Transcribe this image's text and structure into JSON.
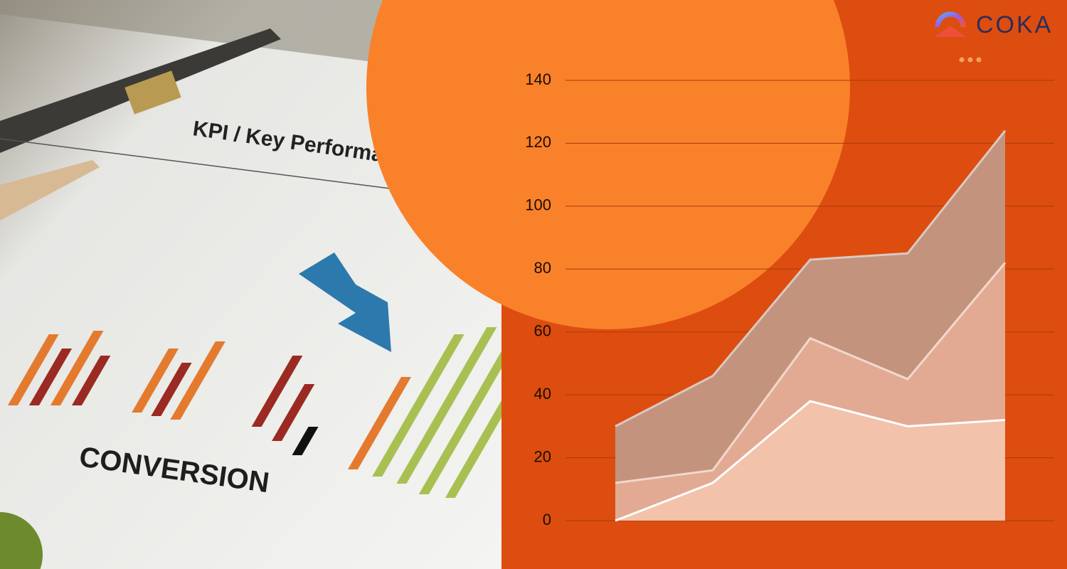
{
  "photo": {
    "heading": "KPI / Key Performance",
    "caption": "CONVERSION"
  },
  "logo": "COKA",
  "chart_data": {
    "type": "area",
    "categories": [
      null,
      null,
      null,
      null,
      null
    ],
    "series": [
      {
        "color": "#c4937d",
        "line_color": "#d9c9c2",
        "values": [
          30,
          46,
          83,
          85,
          124
        ]
      },
      {
        "color": "#e2aa93",
        "line_color": "#f2d8cd",
        "values": [
          12,
          16,
          58,
          45,
          82
        ]
      },
      {
        "color": "#f2c2ab",
        "line_color": "#ffffff",
        "values": [
          0,
          12,
          38,
          30,
          32
        ]
      }
    ],
    "ylim": [
      0,
      140
    ],
    "yticks": [
      0,
      20,
      40,
      60,
      80,
      100,
      120,
      140
    ],
    "grid": true
  }
}
